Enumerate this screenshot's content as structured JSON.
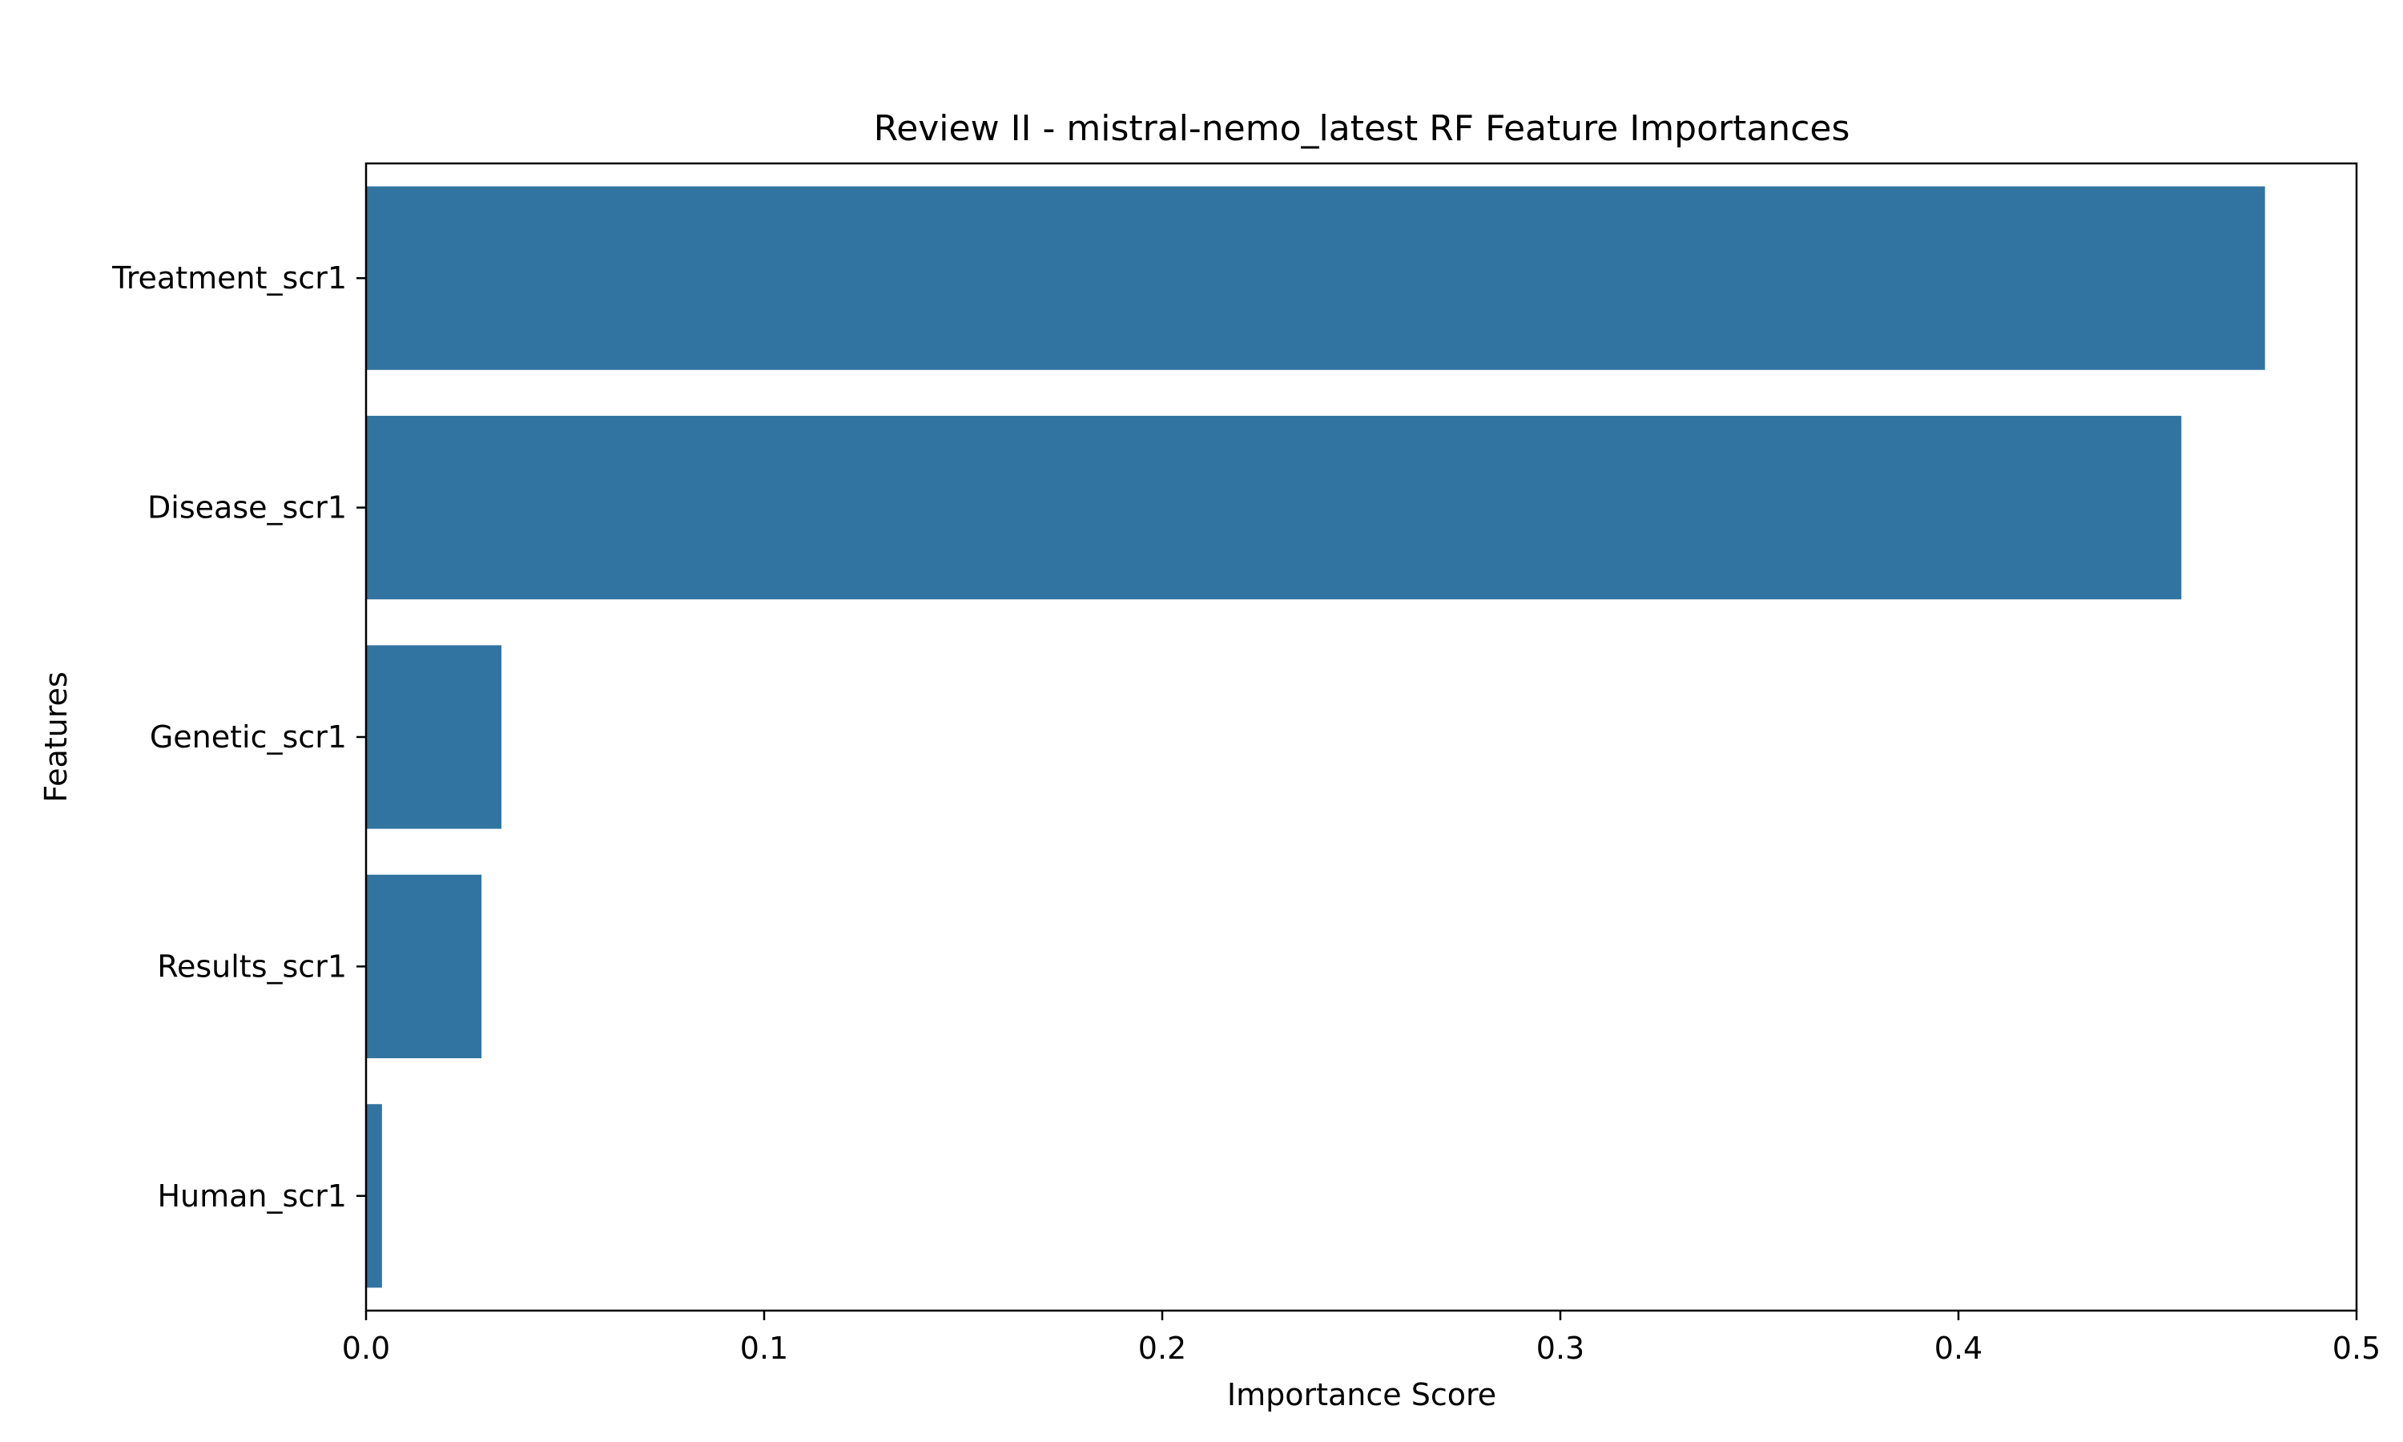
{
  "chart_data": {
    "type": "bar",
    "orientation": "horizontal",
    "title": "Review II - mistral-nemo_latest RF Feature Importances",
    "xlabel": "Importance Score",
    "ylabel": "Features",
    "categories": [
      "Treatment_scr1",
      "Disease_scr1",
      "Genetic_scr1",
      "Results_scr1",
      "Human_scr1"
    ],
    "values": [
      0.477,
      0.456,
      0.034,
      0.029,
      0.004
    ],
    "xlim": [
      0.0,
      0.5
    ],
    "xticks": [
      0.0,
      0.1,
      0.2,
      0.3,
      0.4,
      0.5
    ],
    "xtick_labels": [
      "0.0",
      "0.1",
      "0.2",
      "0.3",
      "0.4",
      "0.5"
    ],
    "grid": false,
    "legend": "none",
    "bar_color": "#3274a1"
  }
}
